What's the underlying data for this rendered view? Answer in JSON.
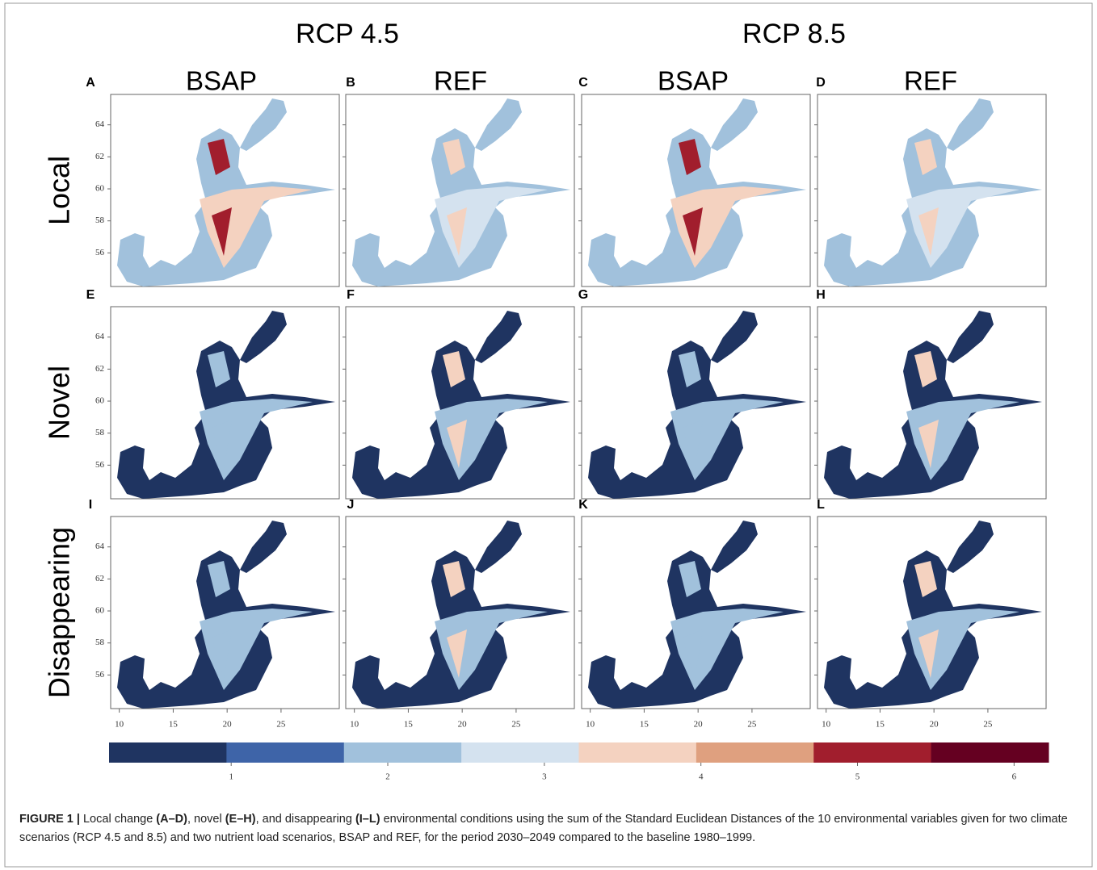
{
  "scenarios": [
    "RCP 4.5",
    "RCP 8.5"
  ],
  "columns": [
    "BSAP",
    "REF",
    "BSAP",
    "REF"
  ],
  "rows": [
    "Local",
    "Novel",
    "Disappearing"
  ],
  "panels": [
    "A",
    "B",
    "C",
    "D",
    "E",
    "F",
    "G",
    "H",
    "I",
    "J",
    "K",
    "L"
  ],
  "lat_lim": [
    53.9,
    65.9
  ],
  "lat_ticks": [
    56,
    58,
    60,
    62,
    64
  ],
  "lon_lim": [
    9.2,
    30.4
  ],
  "lon_ticks": [
    10,
    15,
    20,
    25
  ],
  "colorbar": {
    "lim": [
      0.22,
      6.22
    ],
    "ticks": [
      1,
      2,
      3,
      4,
      5,
      6
    ],
    "colors": [
      "#1f3461",
      "#3e64a8",
      "#a1c1dc",
      "#d4e2ef",
      "#f4d2c0",
      "#dfa07f",
      "#a11e2d",
      "#650021"
    ]
  },
  "caption": {
    "parts": [
      "FIGURE 1 |",
      " Local change ",
      "(A–D)",
      ", novel ",
      "(E–H)",
      ", and disappearing ",
      "(I–L)",
      " environmental conditions using the sum of the Standard Euclidean Distances of the 10 environmental variables given for two climate scenarios (RCP 4.5 and 8.5) and two nutrient load scenarios, BSAP and REF, for the period 2030–2049 compared to the baseline 1980–1999."
    ],
    "bold": [
      true,
      false,
      true,
      false,
      true,
      false,
      true,
      false
    ]
  }
}
